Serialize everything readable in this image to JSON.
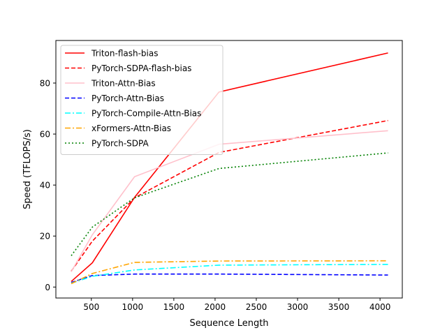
{
  "chart_data": {
    "type": "line",
    "xlabel": "Sequence Length",
    "ylabel": "Speed (TFLOPS/s)",
    "xlim": [
      70,
      4270
    ],
    "ylim": [
      -4.3,
      96.7
    ],
    "xticks": [
      500,
      1000,
      1500,
      2000,
      2500,
      3000,
      3500,
      4000
    ],
    "yticks": [
      0,
      20,
      40,
      60,
      80
    ],
    "legend_position": "upper-left",
    "grid": false,
    "x": [
      256,
      512,
      1024,
      2048,
      4096
    ],
    "series": [
      {
        "name": "Triton-flash-bias",
        "color": "#ff0000",
        "dash": "solid",
        "values": [
          2.2,
          9.5,
          35.2,
          76.5,
          91.8
        ]
      },
      {
        "name": "PyTorch-SDPA-flash-bias",
        "color": "#ff0000",
        "dash": "dashed",
        "values": [
          6.2,
          18.0,
          35.0,
          52.8,
          65.3
        ]
      },
      {
        "name": "Triton-Attn-Bias",
        "color": "#ffc0cb",
        "dash": "solid",
        "values": [
          6.0,
          20.5,
          43.3,
          56.0,
          61.3
        ]
      },
      {
        "name": "PyTorch-Attn-Bias",
        "color": "#0000ff",
        "dash": "dashed",
        "values": [
          1.8,
          4.5,
          5.1,
          5.1,
          4.7
        ]
      },
      {
        "name": "PyTorch-Compile-Attn-Bias",
        "color": "#00ffff",
        "dash": "dashdot",
        "values": [
          1.5,
          4.2,
          6.7,
          8.6,
          8.9
        ]
      },
      {
        "name": "xFormers-Attn-Bias",
        "color": "#ffa500",
        "dash": "dashdot",
        "values": [
          1.3,
          5.3,
          9.7,
          10.2,
          10.3
        ]
      },
      {
        "name": "PyTorch-SDPA",
        "color": "#008000",
        "dash": "dotted",
        "values": [
          12.3,
          23.5,
          35.0,
          46.5,
          52.6
        ]
      }
    ]
  }
}
